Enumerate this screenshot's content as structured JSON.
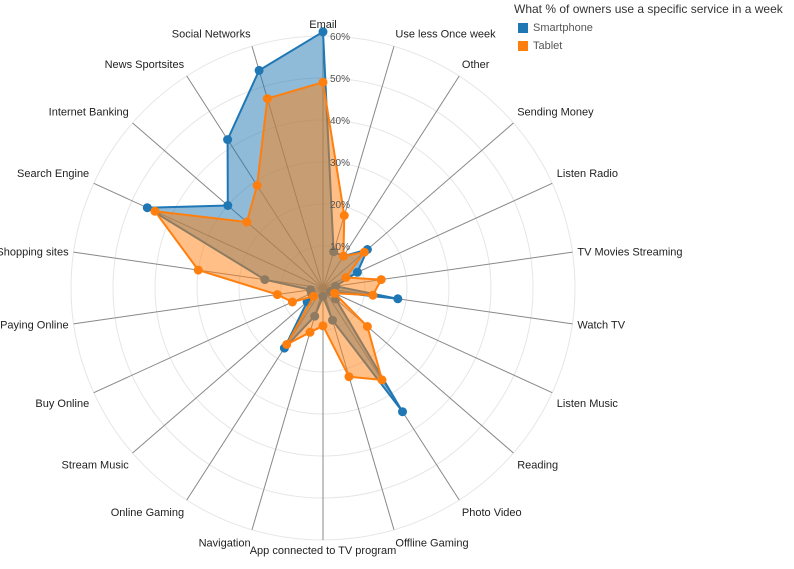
{
  "chart_data": {
    "type": "radar",
    "title": "What % of owners use a specific service in a week",
    "categories": [
      "Email",
      "Use less Once week",
      "Other",
      "Sending Money",
      "Listen Radio",
      "TV Movies Streaming",
      "Watch TV",
      "Listen Music",
      "Reading",
      "Photo Video",
      "Offline Gaming",
      "App connected to TV program",
      "Navigation",
      "Online Gaming",
      "Stream Music",
      "Buy Online",
      "Paying Online",
      "View Shopping sites",
      "Search Engine",
      "Internet Banking",
      "News Sportsites",
      "Social Networks"
    ],
    "rlim": [
      0,
      60
    ],
    "ticks": [
      "10%",
      "20%",
      "30%",
      "40%",
      "50%",
      "60%"
    ],
    "tick_values": [
      10,
      20,
      30,
      40,
      50,
      60
    ],
    "series": [
      {
        "name": "Smartphone",
        "color": "#1f77b4",
        "values": [
          61,
          9,
          9,
          14,
          9,
          3,
          18,
          2,
          4,
          35,
          8,
          2,
          7,
          17,
          5,
          3,
          3,
          14,
          46,
          30,
          42,
          54
        ]
      },
      {
        "name": "Tablet",
        "color": "#ff7f0e",
        "values": [
          49,
          18,
          9,
          13,
          6,
          14,
          12,
          3,
          14,
          26,
          22,
          9,
          11,
          16,
          3,
          8,
          11,
          30,
          44,
          24,
          29,
          47
        ]
      }
    ],
    "legend_position": "top-right"
  }
}
